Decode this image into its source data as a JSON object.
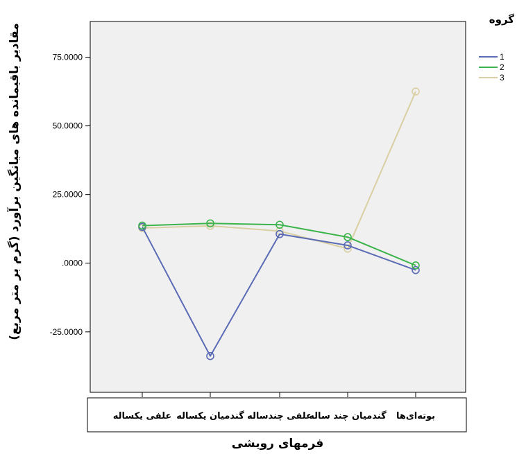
{
  "chart_data": {
    "type": "line",
    "categories": [
      "علفی یکساله",
      "گندمیان یکساله",
      "علفی چندساله",
      "گندمیان چند ساله",
      "بوته‌ای‌ها"
    ],
    "series": [
      {
        "name": "1",
        "color": "#5b6bb5",
        "values": [
          13.2,
          -33.8,
          10.6,
          6.5,
          -2.5
        ]
      },
      {
        "name": "2",
        "color": "#3cb44b",
        "values": [
          13.7,
          14.5,
          14.0,
          9.5,
          -0.8
        ]
      },
      {
        "name": "3",
        "color": "#d9cfa3",
        "values": [
          12.8,
          13.6,
          11.7,
          5.3,
          62.5
        ]
      }
    ],
    "xlabel": "فرمهای رویشی",
    "ylabel": "مقادیر باقیمانده های میانگین برآورد (گرم بر متر مربع)",
    "legend_title": "گروه",
    "legend_position": "top-right",
    "yticks": [
      "75.0000",
      "50.0000",
      "25.0000",
      ".0000",
      "-25.0000"
    ],
    "ytick_values": [
      75,
      50,
      25,
      0,
      -25
    ],
    "ylim": [
      -47,
      88
    ],
    "plot_background": "#f0f0f0",
    "grid": false
  }
}
